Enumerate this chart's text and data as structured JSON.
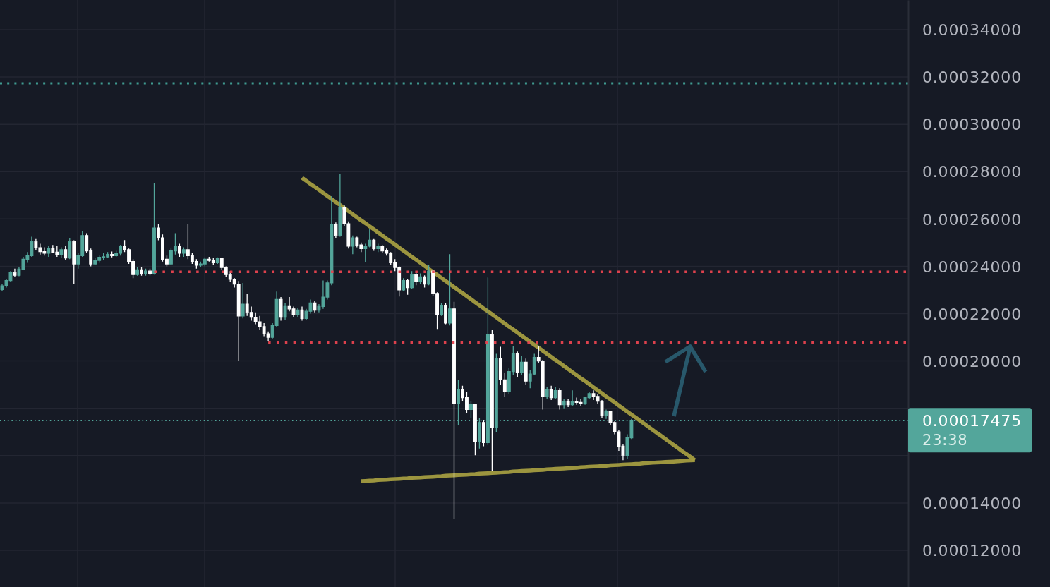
{
  "chart_data": {
    "type": "candlestick",
    "categories": [
      null,
      null,
      null,
      null,
      null,
      null,
      null,
      null,
      null,
      null,
      null,
      null,
      null,
      null,
      null,
      null,
      null,
      null,
      null,
      null,
      null,
      null,
      null,
      null,
      null,
      null,
      null,
      null,
      null,
      null,
      null,
      null,
      null,
      null,
      null,
      null,
      null,
      null,
      null,
      null,
      null,
      null,
      null,
      null,
      null,
      null,
      null,
      null,
      null,
      null,
      null,
      null,
      null,
      null,
      null,
      null,
      null,
      null,
      null,
      null,
      null,
      null,
      null,
      null,
      null,
      null,
      null,
      null,
      null,
      null,
      null,
      null,
      null,
      null,
      null,
      null,
      null,
      null,
      null,
      null,
      null,
      null,
      null,
      null,
      null,
      null,
      null,
      null,
      null,
      null,
      null,
      null,
      null,
      null,
      null,
      null,
      null,
      null,
      null,
      null,
      null,
      null,
      null,
      null,
      null,
      null,
      null,
      null,
      null,
      null,
      null,
      null,
      null,
      null,
      null,
      null,
      null,
      null,
      null,
      null,
      null,
      null,
      null,
      null,
      null,
      null,
      null,
      null,
      null,
      null,
      null,
      null,
      null,
      null,
      null,
      null,
      null,
      null,
      null,
      null,
      null,
      null,
      null,
      null,
      null,
      null,
      null,
      null,
      null,
      null,
      null,
      null,
      null,
      null,
      null,
      null,
      null,
      null,
      null,
      null,
      null,
      null,
      null,
      null,
      null,
      null,
      null,
      null,
      null,
      null,
      null,
      null,
      null,
      null,
      null,
      null,
      null,
      null,
      null,
      null,
      null,
      null,
      null,
      null,
      null,
      null,
      null,
      null,
      null,
      null,
      null,
      null,
      null,
      null,
      null,
      null,
      null,
      null,
      null,
      null,
      null,
      null,
      null,
      null,
      null,
      null,
      null,
      null,
      null,
      null,
      null,
      null,
      null,
      null,
      null
    ],
    "ohlc": [
      [
        0.0002302,
        0.0002325,
        0.0002295,
        0.0002317
      ],
      [
        0.0002317,
        0.0002345,
        0.000231,
        0.000234
      ],
      [
        0.000234,
        0.000238,
        0.0002335,
        0.0002374
      ],
      [
        0.0002374,
        0.000239,
        0.0002355,
        0.0002362
      ],
      [
        0.0002362,
        0.0002395,
        0.0002358,
        0.0002388
      ],
      [
        0.0002388,
        0.000244,
        0.0002385,
        0.000243
      ],
      [
        0.000243,
        0.000246,
        0.0002415,
        0.0002445
      ],
      [
        0.0002445,
        0.0002525,
        0.000244,
        0.0002505
      ],
      [
        0.0002505,
        0.0002515,
        0.000247,
        0.0002478
      ],
      [
        0.0002478,
        0.0002495,
        0.000245,
        0.0002462
      ],
      [
        0.0002462,
        0.000248,
        0.0002445,
        0.0002455
      ],
      [
        0.0002455,
        0.0002485,
        0.000244,
        0.0002475
      ],
      [
        0.0002475,
        0.000249,
        0.0002455,
        0.000246
      ],
      [
        0.000246,
        0.0002485,
        0.000244,
        0.0002448
      ],
      [
        0.0002448,
        0.000248,
        0.0002435,
        0.000247
      ],
      [
        0.000247,
        0.0002485,
        0.0002425,
        0.0002435
      ],
      [
        0.0002435,
        0.000252,
        0.000243,
        0.0002505
      ],
      [
        0.0002505,
        0.000251,
        0.0002326,
        0.000241
      ],
      [
        0.000241,
        0.0002455,
        0.000239,
        0.0002445
      ],
      [
        0.0002445,
        0.000255,
        0.000244,
        0.000253
      ],
      [
        0.000253,
        0.000254,
        0.0002455,
        0.0002465
      ],
      [
        0.0002465,
        0.0002475,
        0.00024,
        0.000241
      ],
      [
        0.000241,
        0.0002435,
        0.0002405,
        0.0002425
      ],
      [
        0.0002425,
        0.0002445,
        0.0002415,
        0.0002438
      ],
      [
        0.0002438,
        0.0002455,
        0.0002425,
        0.000244
      ],
      [
        0.000244,
        0.000246,
        0.0002435,
        0.000245
      ],
      [
        0.000245,
        0.0002462,
        0.0002438,
        0.0002445
      ],
      [
        0.0002445,
        0.0002465,
        0.000244,
        0.0002455
      ],
      [
        0.0002455,
        0.000249,
        0.0002445,
        0.0002485
      ],
      [
        0.0002485,
        0.0002511,
        0.000246,
        0.000247
      ],
      [
        0.000247,
        0.0002475,
        0.000241,
        0.000242
      ],
      [
        0.000242,
        0.000243,
        0.000235,
        0.0002365
      ],
      [
        0.0002365,
        0.0002395,
        0.000236,
        0.0002385
      ],
      [
        0.0002385,
        0.0002395,
        0.000236,
        0.000237
      ],
      [
        0.000237,
        0.000239,
        0.000236,
        0.000238
      ],
      [
        0.000238,
        0.000239,
        0.0002362,
        0.0002368
      ],
      [
        0.0002368,
        0.000275,
        0.0002365,
        0.0002562
      ],
      [
        0.0002562,
        0.000258,
        0.000251,
        0.000252
      ],
      [
        0.000252,
        0.0002535,
        0.000242,
        0.000243
      ],
      [
        0.000243,
        0.0002445,
        0.00024,
        0.000241
      ],
      [
        0.000241,
        0.0002475,
        0.0002405,
        0.0002465
      ],
      [
        0.0002465,
        0.000254,
        0.000245,
        0.0002485
      ],
      [
        0.0002485,
        0.0002495,
        0.000244,
        0.0002455
      ],
      [
        0.0002455,
        0.000248,
        0.000244,
        0.000247
      ],
      [
        0.000247,
        0.000258,
        0.000243,
        0.0002445
      ],
      [
        0.0002445,
        0.0002455,
        0.000241,
        0.000242
      ],
      [
        0.000242,
        0.000243,
        0.000239,
        0.0002405
      ],
      [
        0.0002405,
        0.000242,
        0.0002395,
        0.000241
      ],
      [
        0.000241,
        0.0002438,
        0.00024,
        0.000243
      ],
      [
        0.000243,
        0.000244,
        0.000242,
        0.0002425
      ],
      [
        0.0002425,
        0.0002436,
        0.0002405,
        0.0002415
      ],
      [
        0.0002415,
        0.0002438,
        0.000241,
        0.0002432
      ],
      [
        0.0002432,
        0.0002435,
        0.0002385,
        0.0002395
      ],
      [
        0.0002395,
        0.00024,
        0.0002355,
        0.0002365
      ],
      [
        0.0002365,
        0.000238,
        0.0002335,
        0.0002345
      ],
      [
        0.0002345,
        0.000235,
        0.000231,
        0.0002325
      ],
      [
        0.0002325,
        0.0002338,
        0.0001999,
        0.000219
      ],
      [
        0.000219,
        0.000233,
        0.000218,
        0.000224
      ],
      [
        0.000224,
        0.0002285,
        0.000219,
        0.0002205
      ],
      [
        0.0002205,
        0.000223,
        0.000217,
        0.0002185
      ],
      [
        0.0002185,
        0.0002205,
        0.0002155,
        0.0002165
      ],
      [
        0.0002165,
        0.000219,
        0.000213,
        0.0002145
      ],
      [
        0.0002145,
        0.000216,
        0.0002105,
        0.0002115
      ],
      [
        0.0002115,
        0.0002125,
        0.0002084,
        0.00021
      ],
      [
        0.00021,
        0.000216,
        0.0002095,
        0.000215
      ],
      [
        0.000215,
        0.0002293,
        0.0002145,
        0.000226
      ],
      [
        0.000226,
        0.000227,
        0.000217,
        0.0002185
      ],
      [
        0.0002185,
        0.0002245,
        0.0002175,
        0.000223
      ],
      [
        0.000223,
        0.000227,
        0.000221,
        0.000222
      ],
      [
        0.000222,
        0.000223,
        0.0002185,
        0.0002195
      ],
      [
        0.0002195,
        0.0002225,
        0.0002185,
        0.0002215
      ],
      [
        0.0002215,
        0.000223,
        0.000217,
        0.000218
      ],
      [
        0.000218,
        0.000222,
        0.0002175,
        0.000221
      ],
      [
        0.000221,
        0.000226,
        0.00022,
        0.0002245
      ],
      [
        0.0002245,
        0.0002255,
        0.0002205,
        0.0002215
      ],
      [
        0.0002215,
        0.000224,
        0.0002205,
        0.000223
      ],
      [
        0.000223,
        0.000234,
        0.000222,
        0.000227
      ],
      [
        0.000227,
        0.000234,
        0.000226,
        0.000233
      ],
      [
        0.000233,
        0.0002696,
        0.000232,
        0.0002575
      ],
      [
        0.0002575,
        0.0002585,
        0.000252,
        0.000253
      ],
      [
        0.000253,
        0.0002789,
        0.0002525,
        0.000265
      ],
      [
        0.000265,
        0.000266,
        0.000257,
        0.000258
      ],
      [
        0.000258,
        0.000259,
        0.0002475,
        0.0002485
      ],
      [
        0.0002485,
        0.000253,
        0.0002451,
        0.000252
      ],
      [
        0.000252,
        0.0002525,
        0.000248,
        0.000249
      ],
      [
        0.000249,
        0.00025,
        0.000246,
        0.0002475
      ],
      [
        0.0002475,
        0.0002495,
        0.0002416,
        0.0002485
      ],
      [
        0.0002485,
        0.0002556,
        0.000248,
        0.000251
      ],
      [
        0.000251,
        0.0002515,
        0.0002465,
        0.0002475
      ],
      [
        0.0002475,
        0.0002495,
        0.000246,
        0.0002485
      ],
      [
        0.0002485,
        0.000249,
        0.0002455,
        0.0002465
      ],
      [
        0.0002465,
        0.0002475,
        0.0002445,
        0.0002455
      ],
      [
        0.0002455,
        0.000246,
        0.0002405,
        0.0002415
      ],
      [
        0.0002415,
        0.000243,
        0.000238,
        0.0002395
      ],
      [
        0.0002395,
        0.00024,
        0.0002272,
        0.00023
      ],
      [
        0.00023,
        0.000235,
        0.0002295,
        0.000234
      ],
      [
        0.000234,
        0.0002345,
        0.000228,
        0.000231
      ],
      [
        0.000231,
        0.000238,
        0.0002305,
        0.0002365
      ],
      [
        0.0002365,
        0.0002375,
        0.000232,
        0.0002335
      ],
      [
        0.0002335,
        0.000237,
        0.0002325,
        0.0002355
      ],
      [
        0.0002355,
        0.0002362,
        0.000231,
        0.0002325
      ],
      [
        0.0002325,
        0.0002407,
        0.000232,
        0.000238
      ],
      [
        0.000238,
        0.0002385,
        0.0002275,
        0.0002285
      ],
      [
        0.0002285,
        0.000229,
        0.0002132,
        0.0002195
      ],
      [
        0.0002195,
        0.0002245,
        0.000219,
        0.0002235
      ],
      [
        0.0002235,
        0.0002245,
        0.0002155,
        0.000216
      ],
      [
        0.000216,
        0.0002451,
        0.000215,
        0.000222
      ],
      [
        0.000222,
        0.000225,
        0.0001334,
        0.000182
      ],
      [
        0.000182,
        0.000192,
        0.000173,
        0.000188
      ],
      [
        0.000188,
        0.0001895,
        0.000183,
        0.0001845
      ],
      [
        0.0001845,
        0.000187,
        0.000178,
        0.0001795
      ],
      [
        0.0001795,
        0.000183,
        0.000176,
        0.0001815
      ],
      [
        0.0001815,
        0.000182,
        0.0001602,
        0.000166
      ],
      [
        0.000166,
        0.000176,
        0.000163,
        0.000174
      ],
      [
        0.000174,
        0.000175,
        0.000164,
        0.0001655
      ],
      [
        0.0001655,
        0.0002353,
        0.0001645,
        0.000211
      ],
      [
        0.000211,
        0.000213,
        0.0001536,
        0.000172
      ],
      [
        0.000172,
        0.000203,
        0.00017,
        0.000201
      ],
      [
        0.000201,
        0.000206,
        0.00019,
        0.000192
      ],
      [
        0.000192,
        0.000195,
        0.000185,
        0.000187
      ],
      [
        0.000187,
        0.000197,
        0.000186,
        0.0001955
      ],
      [
        0.0001955,
        0.0002063,
        0.000194,
        0.000203
      ],
      [
        0.000203,
        0.000204,
        0.000193,
        0.000195
      ],
      [
        0.000195,
        0.000202,
        0.000194,
        0.0001995
      ],
      [
        0.0001995,
        0.000201,
        0.00019,
        0.0001915
      ],
      [
        0.0001915,
        0.000196,
        0.0001885,
        0.0001945
      ],
      [
        0.0001945,
        0.000203,
        0.000194,
        0.0002015
      ],
      [
        0.0002015,
        0.0002063,
        0.000199,
        0.0002
      ],
      [
        0.0002,
        0.0002005,
        0.0001795,
        0.000185
      ],
      [
        0.000185,
        0.000189,
        0.000184,
        0.000188
      ],
      [
        0.000188,
        0.0001895,
        0.0001835,
        0.0001845
      ],
      [
        0.0001845,
        0.000189,
        0.000184,
        0.0001875
      ],
      [
        0.0001875,
        0.0001885,
        0.0001795,
        0.0001815
      ],
      [
        0.0001815,
        0.000184,
        0.00018,
        0.000183
      ],
      [
        0.000183,
        0.000184,
        0.0001805,
        0.0001815
      ],
      [
        0.0001815,
        0.0001876,
        0.000181,
        0.000183
      ],
      [
        0.000183,
        0.0001845,
        0.0001815,
        0.0001825
      ],
      [
        0.0001825,
        0.000184,
        0.000181,
        0.000182
      ],
      [
        0.000182,
        0.000185,
        0.0001815,
        0.0001845
      ],
      [
        0.0001845,
        0.000187,
        0.000184,
        0.0001862
      ],
      [
        0.0001862,
        0.0001876,
        0.0001835,
        0.000185
      ],
      [
        0.000185,
        0.0001862,
        0.000182,
        0.000183
      ],
      [
        0.000183,
        0.0001835,
        0.000176,
        0.000177
      ],
      [
        0.000177,
        0.0001795,
        0.0001755,
        0.0001785
      ],
      [
        0.0001785,
        0.000179,
        0.000173,
        0.000174
      ],
      [
        0.000174,
        0.0001745,
        0.000169,
        0.00017
      ],
      [
        0.00017,
        0.000171,
        0.000162,
        0.000164
      ],
      [
        0.000164,
        0.000165,
        0.0001581,
        0.00016
      ],
      [
        0.00016,
        0.000169,
        0.0001585,
        0.0001675
      ],
      [
        0.0001675,
        0.0001755,
        0.000167,
        0.00017475
      ],
      null,
      null,
      null,
      null,
      null,
      null,
      null,
      null,
      null,
      null,
      null,
      null,
      null,
      null,
      null,
      null,
      null,
      null,
      null,
      null,
      null,
      null,
      null,
      null,
      null,
      null,
      null,
      null,
      null,
      null,
      null,
      null,
      null,
      null,
      null,
      null,
      null,
      null,
      null,
      null,
      null,
      null,
      null,
      null,
      null,
      null,
      null,
      null,
      null,
      null,
      null,
      null,
      null,
      null,
      null,
      null,
      null,
      null,
      null,
      null,
      null,
      null,
      null,
      null,
      null
    ],
    "colors": [
      "#53a69b",
      "#53a69b",
      "#53a69b",
      "#ffffff",
      "#53a69b",
      "#53a69b",
      "#53a69b",
      "#53a69b",
      "#ffffff",
      "#ffffff",
      "#ffffff",
      "#53a69b",
      "#ffffff",
      "#ffffff",
      "#53a69b",
      "#ffffff",
      "#53a69b",
      "#ffffff",
      "#53a69b",
      "#53a69b",
      "#ffffff",
      "#ffffff",
      "#53a69b",
      "#53a69b",
      "#53a69b",
      "#53a69b",
      "#ffffff",
      "#53a69b",
      "#53a69b",
      "#ffffff",
      "#ffffff",
      "#ffffff",
      "#53a69b",
      "#ffffff",
      "#53a69b",
      "#ffffff",
      "#53a69b",
      "#ffffff",
      "#ffffff",
      "#ffffff",
      "#53a69b",
      "#53a69b",
      "#ffffff",
      "#53a69b",
      "#ffffff",
      "#ffffff",
      "#ffffff",
      "#53a69b",
      "#53a69b",
      "#ffffff",
      "#ffffff",
      "#53a69b",
      "#ffffff",
      "#ffffff",
      "#ffffff",
      "#ffffff",
      "#ffffff",
      "#53a69b",
      "#ffffff",
      "#ffffff",
      "#ffffff",
      "#ffffff",
      "#ffffff",
      "#ffffff",
      "#53a69b",
      "#53a69b",
      "#ffffff",
      "#53a69b",
      "#ffffff",
      "#ffffff",
      "#53a69b",
      "#ffffff",
      "#53a69b",
      "#53a69b",
      "#ffffff",
      "#53a69b",
      "#53a69b",
      "#53a69b",
      "#53a69b",
      "#ffffff",
      "#53a69b",
      "#ffffff",
      "#ffffff",
      "#53a69b",
      "#ffffff",
      "#ffffff",
      "#53a69b",
      "#53a69b",
      "#ffffff",
      "#53a69b",
      "#ffffff",
      "#ffffff",
      "#ffffff",
      "#ffffff",
      "#ffffff",
      "#53a69b",
      "#ffffff",
      "#53a69b",
      "#ffffff",
      "#53a69b",
      "#ffffff",
      "#53a69b",
      "#ffffff",
      "#ffffff",
      "#53a69b",
      "#ffffff",
      "#53a69b",
      "#ffffff",
      "#53a69b",
      "#ffffff",
      "#ffffff",
      "#53a69b",
      "#ffffff",
      "#53a69b",
      "#ffffff",
      "#53a69b",
      "#ffffff",
      "#53a69b",
      "#ffffff",
      "#ffffff",
      "#53a69b",
      "#53a69b",
      "#ffffff",
      "#53a69b",
      "#ffffff",
      "#53a69b",
      "#53a69b",
      "#ffffff",
      "#ffffff",
      "#53a69b",
      "#ffffff",
      "#53a69b",
      "#ffffff",
      "#53a69b",
      "#ffffff",
      "#53a69b",
      "#ffffff",
      "#ffffff",
      "#53a69b",
      "#53a69b",
      "#ffffff",
      "#ffffff",
      "#ffffff",
      "#53a69b",
      "#ffffff",
      "#ffffff",
      "#ffffff",
      "#ffffff",
      "#53a69b",
      "#53a69b",
      null,
      null,
      null,
      null,
      null,
      null,
      null,
      null,
      null,
      null,
      null,
      null,
      null,
      null,
      null,
      null,
      null,
      null,
      null,
      null,
      null,
      null,
      null,
      null,
      null,
      null,
      null,
      null,
      null,
      null,
      null,
      null,
      null,
      null,
      null,
      null,
      null,
      null,
      null,
      null,
      null,
      null,
      null,
      null,
      null,
      null,
      null,
      null,
      null,
      null,
      null,
      null,
      null,
      null,
      null,
      null,
      null,
      null,
      null,
      null,
      null,
      null,
      null,
      null,
      null
    ],
    "series": [
      {
        "type": "line",
        "color": "#a39c40",
        "line_style": "solid",
        "values": [
          null,
          null,
          null,
          null,
          null,
          null,
          null,
          null,
          null,
          null,
          null,
          null,
          null,
          null,
          null,
          null,
          null,
          null,
          null,
          null,
          null,
          null,
          null,
          null,
          null,
          null,
          null,
          null,
          null,
          null,
          null,
          null,
          null,
          null,
          null,
          null,
          null,
          null,
          null,
          null,
          null,
          null,
          null,
          null,
          null,
          null,
          null,
          null,
          null,
          null,
          null,
          null,
          null,
          null,
          null,
          null,
          null,
          null,
          null,
          null,
          null,
          null,
          null,
          null,
          null,
          null,
          null,
          null,
          null,
          null,
          null,
          0.0002774,
          0.0002761,
          0.0002748,
          0.0002736,
          0.0002723,
          0.000271,
          0.0002697,
          0.0002684,
          0.0002671,
          0.0002659,
          0.0002646,
          0.0002633,
          0.000262,
          0.0002607,
          0.0002594,
          0.0002582,
          0.0002569,
          0.0002556,
          0.0002543,
          0.000253,
          0.0002517,
          0.0002505,
          0.0002492,
          0.0002479,
          0.0002466,
          0.0002453,
          0.000244,
          0.0002428,
          0.0002415,
          0.0002402,
          0.0002389,
          0.0002376,
          0.0002364,
          0.0002351,
          0.0002338,
          0.0002325,
          0.0002312,
          0.0002299,
          0.0002287,
          0.0002274,
          0.0002261,
          0.0002248,
          0.0002235,
          0.0002222,
          0.000221,
          0.0002197,
          0.0002184,
          0.0002171,
          0.0002158,
          0.0002145,
          0.0002133,
          0.000212,
          0.0002107,
          0.0002094,
          0.0002081,
          0.0002068,
          0.0002056,
          0.0002043,
          0.000203,
          0.0002017,
          0.0002004,
          0.0001992,
          0.0001979,
          0.0001966,
          0.0001953,
          0.000194,
          0.0001927,
          0.0001915,
          0.0001902,
          0.0001889,
          0.0001876,
          0.0001863,
          0.000185,
          0.0001838,
          0.0001825,
          0.0001812,
          0.0001799,
          0.0001786,
          0.0001773,
          0.0001761,
          0.0001748,
          0.0001735,
          0.0001722,
          0.0001709,
          0.0001696,
          0.0001684,
          0.0001671,
          0.0001658,
          0.0001645,
          0.0001632,
          0.0001619,
          0.0001607,
          0.0001594,
          0.0001581,
          null,
          null,
          null,
          null,
          null,
          null,
          null,
          null,
          null,
          null,
          null,
          null,
          null,
          null,
          null,
          null,
          null,
          null,
          null,
          null,
          null,
          null,
          null,
          null,
          null,
          null,
          null,
          null,
          null,
          null,
          null,
          null,
          null,
          null,
          null,
          null,
          null,
          null,
          null,
          null,
          null,
          null,
          null,
          null,
          null,
          null,
          null,
          null,
          null,
          null
        ]
      },
      {
        "type": "line",
        "color": "#a39c40",
        "line_style": "solid",
        "values": [
          null,
          null,
          null,
          null,
          null,
          null,
          null,
          null,
          null,
          null,
          null,
          null,
          null,
          null,
          null,
          null,
          null,
          null,
          null,
          null,
          null,
          null,
          null,
          null,
          null,
          null,
          null,
          null,
          null,
          null,
          null,
          null,
          null,
          null,
          null,
          null,
          null,
          null,
          null,
          null,
          null,
          null,
          null,
          null,
          null,
          null,
          null,
          null,
          null,
          null,
          null,
          null,
          null,
          null,
          null,
          null,
          null,
          null,
          null,
          null,
          null,
          null,
          null,
          null,
          null,
          null,
          null,
          null,
          null,
          null,
          null,
          null,
          null,
          null,
          null,
          null,
          null,
          null,
          null,
          null,
          null,
          null,
          null,
          null,
          null,
          0.0001492,
          0.0001493,
          0.0001494,
          0.0001495,
          0.0001497,
          0.0001498,
          0.0001499,
          0.00015,
          0.0001501,
          0.0001502,
          0.0001503,
          0.0001504,
          0.0001506,
          0.0001507,
          0.0001508,
          0.0001509,
          0.000151,
          0.0001511,
          0.0001512,
          0.0001513,
          0.0001515,
          0.0001516,
          0.0001517,
          0.0001518,
          0.0001519,
          0.000152,
          0.0001521,
          0.0001522,
          0.0001524,
          0.0001525,
          0.0001526,
          0.0001527,
          0.0001528,
          0.0001529,
          0.000153,
          0.0001531,
          0.0001533,
          0.0001534,
          0.0001535,
          0.0001536,
          0.0001537,
          0.0001538,
          0.0001539,
          0.000154,
          0.0001542,
          0.0001543,
          0.0001544,
          0.0001545,
          0.0001546,
          0.0001547,
          0.0001548,
          0.0001549,
          0.0001551,
          0.0001552,
          0.0001553,
          0.0001554,
          0.0001555,
          0.0001556,
          0.0001557,
          0.0001559,
          0.000156,
          0.0001561,
          0.0001562,
          0.0001563,
          0.0001564,
          0.0001565,
          0.0001566,
          0.0001568,
          0.0001569,
          0.000157,
          0.0001571,
          0.0001572,
          0.0001573,
          0.0001574,
          0.0001575,
          0.0001576,
          0.0001578,
          0.0001579,
          0.000158,
          0.0001581,
          null,
          null,
          null,
          null,
          null,
          null,
          null,
          null,
          null,
          null,
          null,
          null,
          null,
          null,
          null,
          null,
          null,
          null,
          null,
          null,
          null,
          null,
          null,
          null,
          null,
          null,
          null,
          null,
          null,
          null,
          null,
          null,
          null,
          null,
          null,
          null,
          null,
          null,
          null,
          null,
          null,
          null,
          null,
          null,
          null,
          null,
          null,
          null,
          null,
          null
        ]
      },
      {
        "type": "line",
        "color": "#e8434f",
        "line_style": "dotted",
        "values": [
          null,
          null,
          null,
          null,
          null,
          null,
          null,
          null,
          null,
          null,
          null,
          null,
          null,
          null,
          null,
          null,
          null,
          null,
          null,
          null,
          null,
          null,
          null,
          null,
          null,
          null,
          null,
          null,
          null,
          null,
          null,
          null,
          null,
          null,
          null,
          null,
          0.0002377,
          0.0002377,
          0.0002377,
          0.0002377,
          0.0002377,
          0.0002377,
          0.0002377,
          0.0002377,
          0.0002377,
          0.0002377,
          0.0002377,
          0.0002377,
          0.0002377,
          0.0002377,
          0.0002377,
          0.0002377,
          0.0002377,
          0.0002377,
          0.0002377,
          0.0002377,
          0.0002377,
          0.0002377,
          0.0002377,
          0.0002377,
          0.0002377,
          0.0002377,
          0.0002377,
          0.0002377,
          0.0002377,
          0.0002377,
          0.0002377,
          0.0002377,
          0.0002377,
          0.0002377,
          0.0002377,
          0.0002377,
          0.0002377,
          0.0002377,
          0.0002377,
          0.0002377,
          0.0002377,
          0.0002377,
          0.0002377,
          0.0002377,
          0.0002377,
          0.0002377,
          0.0002377,
          0.0002377,
          0.0002377,
          0.0002377,
          0.0002377,
          0.0002377,
          0.0002377,
          0.0002377,
          0.0002377,
          0.0002377,
          0.0002377,
          0.0002377,
          0.0002377,
          0.0002377,
          0.0002377,
          0.0002377,
          0.0002377,
          0.0002377,
          0.0002377,
          0.0002377,
          0.0002377,
          0.0002377,
          0.0002377,
          0.0002377,
          0.0002377,
          0.0002377,
          0.0002377,
          0.0002377,
          0.0002377,
          0.0002377,
          0.0002377,
          0.0002377,
          0.0002377,
          0.0002377,
          0.0002377,
          0.0002377,
          0.0002377,
          0.0002377,
          0.0002377,
          0.0002377,
          0.0002377,
          0.0002377,
          0.0002377,
          0.0002377,
          0.0002377,
          0.0002377,
          0.0002377,
          0.0002377,
          0.0002377,
          0.0002377,
          0.0002377,
          0.0002377,
          0.0002377,
          0.0002377,
          0.0002377,
          0.0002377,
          0.0002377,
          0.0002377,
          0.0002377,
          0.0002377,
          0.0002377,
          0.0002377,
          0.0002377,
          0.0002377,
          0.0002377,
          0.0002377,
          0.0002377,
          0.0002377,
          0.0002377,
          0.0002377,
          0.0002377,
          0.0002377,
          0.0002377,
          0.0002377,
          0.0002377,
          0.0002377,
          0.0002377,
          0.0002377,
          0.0002377,
          0.0002377,
          0.0002377,
          0.0002377,
          0.0002377,
          0.0002377,
          0.0002377,
          0.0002377,
          0.0002377,
          0.0002377,
          0.0002377,
          0.0002377,
          0.0002377,
          0.0002377,
          0.0002377,
          0.0002377,
          0.0002377,
          0.0002377,
          0.0002377,
          0.0002377,
          0.0002377,
          0.0002377,
          0.0002377,
          0.0002377,
          0.0002377,
          0.0002377,
          0.0002377,
          0.0002377,
          0.0002377,
          0.0002377,
          0.0002377,
          0.0002377,
          0.0002377,
          0.0002377,
          0.0002377,
          0.0002377,
          0.0002377,
          0.0002377,
          0.0002377,
          0.0002377,
          0.0002377,
          0.0002377,
          0.0002377,
          0.0002377,
          0.0002377,
          0.0002377,
          0.0002377,
          0.0002377,
          0.0002377,
          0.0002377,
          0.0002377,
          0.0002377,
          0.0002377,
          0.0002377,
          0.0002377
        ]
      },
      {
        "type": "line",
        "color": "#e8434f",
        "line_style": "dotted",
        "values": [
          null,
          null,
          null,
          null,
          null,
          null,
          null,
          null,
          null,
          null,
          null,
          null,
          null,
          null,
          null,
          null,
          null,
          null,
          null,
          null,
          null,
          null,
          null,
          null,
          null,
          null,
          null,
          null,
          null,
          null,
          null,
          null,
          null,
          null,
          null,
          null,
          null,
          null,
          null,
          null,
          null,
          null,
          null,
          null,
          null,
          null,
          null,
          null,
          null,
          null,
          null,
          null,
          null,
          null,
          null,
          null,
          null,
          null,
          null,
          null,
          null,
          null,
          null,
          0.0002078,
          0.0002078,
          0.0002078,
          0.0002078,
          0.0002078,
          0.0002078,
          0.0002078,
          0.0002078,
          0.0002078,
          0.0002078,
          0.0002078,
          0.0002078,
          0.0002078,
          0.0002078,
          0.0002078,
          0.0002078,
          0.0002078,
          0.0002078,
          0.0002078,
          0.0002078,
          0.0002078,
          0.0002078,
          0.0002078,
          0.0002078,
          0.0002078,
          0.0002078,
          0.0002078,
          0.0002078,
          0.0002078,
          0.0002078,
          0.0002078,
          0.0002078,
          0.0002078,
          0.0002078,
          0.0002078,
          0.0002078,
          0.0002078,
          0.0002078,
          0.0002078,
          0.0002078,
          0.0002078,
          0.0002078,
          0.0002078,
          0.0002078,
          0.0002078,
          0.0002078,
          0.0002078,
          0.0002078,
          0.0002078,
          0.0002078,
          0.0002078,
          0.0002078,
          0.0002078,
          0.0002078,
          0.0002078,
          0.0002078,
          0.0002078,
          0.0002078,
          0.0002078,
          0.0002078,
          0.0002078,
          0.0002078,
          0.0002078,
          0.0002078,
          0.0002078,
          0.0002078,
          0.0002078,
          0.0002078,
          0.0002078,
          0.0002078,
          0.0002078,
          0.0002078,
          0.0002078,
          0.0002078,
          0.0002078,
          0.0002078,
          0.0002078,
          0.0002078,
          0.0002078,
          0.0002078,
          0.0002078,
          0.0002078,
          0.0002078,
          0.0002078,
          0.0002078,
          0.0002078,
          0.0002078,
          0.0002078,
          0.0002078,
          0.0002078,
          0.0002078,
          0.0002078,
          0.0002078,
          0.0002078,
          0.0002078,
          0.0002078,
          0.0002078,
          0.0002078,
          0.0002078,
          0.0002078,
          0.0002078,
          0.0002078,
          0.0002078,
          0.0002078,
          0.0002078,
          0.0002078,
          0.0002078,
          0.0002078,
          0.0002078,
          0.0002078,
          0.0002078,
          0.0002078,
          0.0002078,
          0.0002078,
          0.0002078,
          0.0002078,
          0.0002078,
          0.0002078,
          0.0002078,
          0.0002078,
          0.0002078,
          0.0002078,
          0.0002078,
          0.0002078,
          0.0002078,
          0.0002078,
          0.0002078,
          0.0002078,
          0.0002078,
          0.0002078,
          0.0002078,
          0.0002078,
          0.0002078,
          0.0002078,
          0.0002078,
          0.0002078,
          0.0002078,
          0.0002078,
          0.0002078,
          0.0002078,
          0.0002078,
          0.0002078,
          0.0002078,
          0.0002078,
          0.0002078,
          0.0002078,
          0.0002078,
          0.0002078,
          0.0002078,
          0.0002078,
          0.0002078,
          0.0002078
        ]
      }
    ],
    "ref_lines": [
      {
        "axis": "y",
        "value": 0.0003173,
        "color": "#3f9a90",
        "line_style": "dotted"
      },
      {
        "axis": "y",
        "value": 0.00017475,
        "label": "0.00017475",
        "color": "#53a69b",
        "line_style": "dotted"
      }
    ],
    "annotations": [
      "23:38"
    ],
    "ylim": [
      0.0001045,
      0.0003525
    ],
    "yticks": [
      {
        "value": 0.00012,
        "label": "0.00012000"
      },
      {
        "value": 0.00014,
        "label": "0.00014000"
      },
      {
        "value": 0.00016,
        "label": null
      },
      {
        "value": 0.00018,
        "label": null
      },
      {
        "value": 0.0002,
        "label": "0.00020000"
      },
      {
        "value": 0.00022,
        "label": "0.00022000"
      },
      {
        "value": 0.00024,
        "label": "0.00024000"
      },
      {
        "value": 0.00026,
        "label": "0.00026000"
      },
      {
        "value": 0.00028,
        "label": "0.00028000"
      },
      {
        "value": 0.0003,
        "label": "0.00030000"
      },
      {
        "value": 0.00032,
        "label": "0.00032000"
      },
      {
        "value": 0.00034,
        "label": "0.00034000"
      }
    ],
    "grid": true,
    "tick_labels": "y"
  }
}
